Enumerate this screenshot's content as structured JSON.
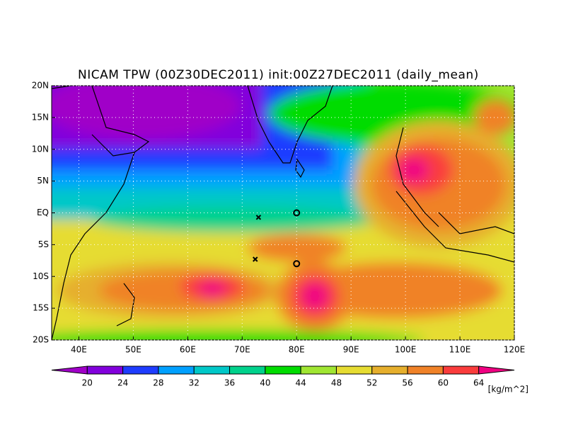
{
  "chart_data": {
    "type": "map",
    "title": "NICAM TPW (00Z30DEC2011) init:00Z27DEC2011 (daily_mean)",
    "xlim": [
      35,
      120
    ],
    "ylim": [
      -20,
      20
    ],
    "xticks": [
      {
        "value": 40,
        "label": "40E"
      },
      {
        "value": 50,
        "label": "50E"
      },
      {
        "value": 60,
        "label": "60E"
      },
      {
        "value": 70,
        "label": "70E"
      },
      {
        "value": 80,
        "label": "80E"
      },
      {
        "value": 90,
        "label": "90E"
      },
      {
        "value": 100,
        "label": "100E"
      },
      {
        "value": 110,
        "label": "110E"
      },
      {
        "value": 120,
        "label": "120E"
      }
    ],
    "yticks": [
      {
        "value": 20,
        "label": "20N"
      },
      {
        "value": 15,
        "label": "15N"
      },
      {
        "value": 10,
        "label": "10N"
      },
      {
        "value": 5,
        "label": "5N"
      },
      {
        "value": 0,
        "label": "EQ"
      },
      {
        "value": -5,
        "label": "5S"
      },
      {
        "value": -10,
        "label": "10S"
      },
      {
        "value": -15,
        "label": "15S"
      },
      {
        "value": -20,
        "label": "20S"
      }
    ],
    "grid": true,
    "colorbar": {
      "levels": [
        20,
        24,
        28,
        32,
        36,
        40,
        44,
        48,
        52,
        56,
        60,
        64
      ],
      "colors": [
        "#a000c8",
        "#8200dc",
        "#1e3cff",
        "#00a0ff",
        "#00c8c8",
        "#00d28c",
        "#00dc00",
        "#a0e632",
        "#e6dc32",
        "#e6af2d",
        "#f08228",
        "#fa3c3c",
        "#f00082"
      ],
      "units": "[kg/m^2]"
    },
    "markers": [
      {
        "lon": 73,
        "lat": -0.7,
        "symbol": "x"
      },
      {
        "lon": 72.4,
        "lat": -7.3,
        "symbol": "x"
      },
      {
        "lon": 80,
        "lat": 0,
        "symbol": "o"
      },
      {
        "lon": 80,
        "lat": -8,
        "symbol": "o"
      }
    ]
  }
}
